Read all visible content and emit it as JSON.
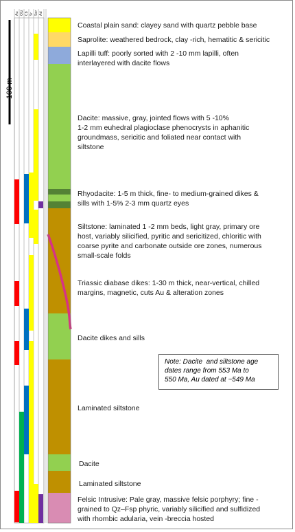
{
  "column_headers": [
    "Au",
    "Qtz",
    "Cb",
    "Sr",
    "Ser",
    "Ad"
  ],
  "scale_bar": {
    "label": "100 m"
  },
  "units": [
    {
      "label": "Coastal plain sand: clayey sand with quartz pebble base",
      "color": "#ffff00"
    },
    {
      "label": "Saprolite: weathered bedrock, clay -rich, hematitic & sericitic",
      "color": "#ffd966"
    },
    {
      "label": "Lapilli tuff: poorly sorted with 2 -10 mm lapilli, often\ninterlayered with dacite flows",
      "color": "#8eaadb"
    },
    {
      "label": "Dacite: massive, gray, jointed flows with 5 -10%\n1-2 mm euhedral plagioclase phenocrysts in aphanitic\ngroundmass, sericitic and foliated near contact with\nsiltstone",
      "color": "#92d050"
    },
    {
      "label": "Rhyodacite: 1-5 m thick, fine- to medium-grained dikes &\nsills with 1-5% 2-3 mm quartz eyes",
      "color": "#548235"
    },
    {
      "label": "Siltstone: laminated 1 -2 mm beds, light gray, primary ore\nhost, variably silicified, pyritic and sericitized, chloritic with\ncoarse pyrite and carbonate outside ore zones, numerous\nsmall-scale folds",
      "color": "#bf9000"
    },
    {
      "label": "Triassic diabase dikes: 1-30 m thick, near-vertical, chilled\nmargins, magnetic, cuts Au & alteration zones",
      "color": "#d63384"
    },
    {
      "label": "Dacite dikes and sills",
      "color": "#92d050"
    },
    {
      "label": "Laminated siltstone",
      "color": "#bf9000"
    },
    {
      "label": "Dacite",
      "color": "#92d050"
    },
    {
      "label": "Laminated siltstone",
      "color": "#bf9000"
    },
    {
      "label": "Felsic Intrusive: Pale gray, massive felsic porphyry; fine -\ngrained to Qz–Fsp phyric, variably silicified and sulfidized\nwith rhombic adularia, vein -breccia hosted",
      "color": "#d98cb3"
    }
  ],
  "note": "Note: Dacite  and siltstone age\ndates range from 553 Ma to\n550 Ma, Au dated at ~549 Ma"
}
